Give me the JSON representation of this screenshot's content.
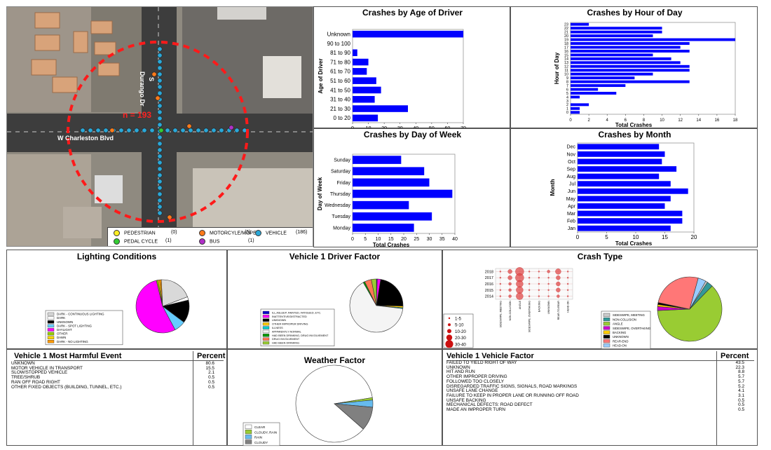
{
  "map": {
    "n_label": "n = 193",
    "street_main": "W Charleston Blvd",
    "street_cross": "Durango Dr",
    "street_s": "S",
    "legend": [
      {
        "label": "PEDESTRIAN",
        "count": "(0)",
        "color": "#ffee22"
      },
      {
        "label": "MOTORCYLE/MOPED",
        "count": "(5)",
        "color": "#ff7a1a"
      },
      {
        "label": "VEHICLE",
        "count": "(186)",
        "color": "#2aa8d8"
      },
      {
        "label": "PEDAL CYCLE",
        "count": "(1)",
        "color": "#33cc33"
      },
      {
        "label": "BUS",
        "count": "(1)",
        "color": "#b030c8"
      }
    ]
  },
  "chart_data": [
    {
      "id": "age",
      "type": "bar",
      "orientation": "horizontal",
      "title": "Crashes by Age of Driver",
      "xlabel": "Total Crashes",
      "ylabel": "Age of Driver",
      "categories": [
        "Unknown",
        "90 to 100",
        "81 to 90",
        "71 to 80",
        "61 to 70",
        "51 to 60",
        "41 to 50",
        "31 to 40",
        "21 to 30",
        "0 to 20"
      ],
      "values": [
        70,
        0,
        3,
        10,
        9,
        15,
        18,
        14,
        35,
        16
      ],
      "xlim": [
        0,
        70
      ],
      "xticks": [
        0,
        10,
        20,
        30,
        40,
        50,
        60,
        70
      ],
      "color": "#0000ff"
    },
    {
      "id": "hour",
      "type": "bar",
      "orientation": "horizontal",
      "title": "Crashes by Hour of Day",
      "xlabel": "Total Crashes",
      "ylabel": "Hour of Day",
      "categories": [
        "23",
        "22",
        "21",
        "20",
        "19",
        "18",
        "17",
        "16",
        "15",
        "14",
        "13",
        "12",
        "11",
        "10",
        "9",
        "8",
        "7",
        "6",
        "5",
        "4",
        "3",
        "2",
        "1",
        "0"
      ],
      "values": [
        2,
        10,
        10,
        9,
        18,
        13,
        12,
        13,
        9,
        11,
        12,
        13,
        13,
        9,
        7,
        13,
        6,
        3,
        5,
        1,
        0,
        2,
        1,
        1
      ],
      "xlim": [
        0,
        18
      ],
      "xticks": [
        0,
        2,
        4,
        6,
        8,
        10,
        12,
        14,
        16,
        18
      ],
      "color": "#0000ff"
    },
    {
      "id": "dow",
      "type": "bar",
      "orientation": "horizontal",
      "title": "Crashes by Day of Week",
      "xlabel": "Total Crashes",
      "ylabel": "Day of Week",
      "categories": [
        "Sunday",
        "Saturday",
        "Friday",
        "Thursday",
        "Wednesday",
        "Tuesday",
        "Monday"
      ],
      "values": [
        19,
        28,
        30,
        39,
        22,
        31,
        24
      ],
      "xlim": [
        0,
        40
      ],
      "xticks": [
        0,
        5,
        10,
        15,
        20,
        25,
        30,
        35,
        40
      ],
      "color": "#0000ff"
    },
    {
      "id": "month",
      "type": "bar",
      "orientation": "horizontal",
      "title": "Crashes by Month",
      "xlabel": "Total Crashes",
      "ylabel": "Month",
      "categories": [
        "Dec",
        "Nov",
        "Oct",
        "Sep",
        "Aug",
        "Jul",
        "Jun",
        "May",
        "Apr",
        "Mar",
        "Feb",
        "Jan"
      ],
      "values": [
        14,
        15,
        14.5,
        17,
        14,
        16,
        19,
        16,
        15,
        18,
        18,
        16
      ],
      "xlim": [
        0,
        20
      ],
      "xticks": [
        0,
        5,
        10,
        15,
        20
      ],
      "color": "#0000ff"
    },
    {
      "id": "lighting",
      "type": "pie",
      "title": "Lighting Conditions",
      "slices": [
        {
          "label": "DARK - CONTINUOUS LIGHTING",
          "value": 20,
          "color": "#d9d9d9"
        },
        {
          "label": "DARK",
          "value": 2,
          "color": "#ffffff"
        },
        {
          "label": "UNKNOWN",
          "value": 14,
          "color": "#000000"
        },
        {
          "label": "DARK - SPOT LIGHTING",
          "value": 7,
          "color": "#66ccff"
        },
        {
          "label": "DAYLIGHT",
          "value": 54,
          "color": "#ff00ff"
        },
        {
          "label": "OTHER",
          "value": 1,
          "color": "#99cc00"
        },
        {
          "label": "DAWN",
          "value": 1,
          "color": "#ffd700"
        },
        {
          "label": "DARK - NO LIGHTING",
          "value": 1,
          "color": "#ff9900"
        }
      ]
    },
    {
      "id": "driver",
      "type": "pie",
      "title": "Vehicle 1 Driver Factor",
      "slices": [
        {
          "label": "ILL,ASLEEP, FAINTED, FATIGUED, ETC.",
          "value": 0.5,
          "color": "#0000cc"
        },
        {
          "label": "INATTENTIVE/DISTRACTED",
          "value": 2,
          "color": "#ff00ff"
        },
        {
          "label": "UNKNOWN",
          "value": 22,
          "color": "#000000"
        },
        {
          "label": "OTHER IMPROPER DRIVING",
          "value": 1,
          "color": "#ffcc00"
        },
        {
          "label": "ILLNESS",
          "value": 0.5,
          "color": "#00cccc"
        },
        {
          "label": "APPARENTLY NORMAL",
          "value": 63,
          "color": "#f4f4f4"
        },
        {
          "label": "HAD BEEN DRINKING, DRUG INVOLVEMENT",
          "value": 1,
          "color": "#009900"
        },
        {
          "label": "DRUG INVOLVEMENT",
          "value": 4,
          "color": "#ff7755"
        },
        {
          "label": "HAD BEEN DRINKING",
          "value": 3,
          "color": "#99cc33"
        }
      ]
    },
    {
      "id": "crashtype",
      "type": "pie",
      "title": "Crash Type",
      "slices": [
        {
          "label": "SIDESWIPE, MEETING",
          "value": 1,
          "color": "#cccccc"
        },
        {
          "label": "NON-COLLISION",
          "value": 3,
          "color": "#339999"
        },
        {
          "label": "ANGLE",
          "value": 62,
          "color": "#99cc33"
        },
        {
          "label": "SIDESWIPE, OVERTAKING",
          "value": 2,
          "color": "#cc00cc"
        },
        {
          "label": "BACKING",
          "value": 1,
          "color": "#ffcc00"
        },
        {
          "label": "UNKNOWN",
          "value": 1,
          "color": "#000000"
        },
        {
          "label": "REAR-END",
          "value": 26,
          "color": "#ff7777"
        },
        {
          "label": "HEAD-ON",
          "value": 4,
          "color": "#99ccff"
        }
      ]
    },
    {
      "id": "weather",
      "type": "pie",
      "title": "Weather Factor",
      "slices": [
        {
          "label": "CLEAR",
          "value": 86,
          "color": "#ffffff"
        },
        {
          "label": "CLOUDY, RAIN",
          "value": 1,
          "color": "#99cc33"
        },
        {
          "label": "RAIN",
          "value": 3,
          "color": "#66bbee"
        },
        {
          "label": "CLOUDY",
          "value": 10,
          "color": "#808080"
        }
      ]
    },
    {
      "id": "crashbubble",
      "type": "scatter",
      "years": [
        "2018",
        "2017",
        "2016",
        "2015",
        "2014"
      ],
      "categories": [
        "SIDESWIPE, MEETING",
        "NON-COLLISION",
        "ANGLE",
        "SIDESWIPE, OVERTAKING",
        "BACKING",
        "UNKNOWN",
        "REAR-TO-REAR",
        "HEAD-ON"
      ],
      "size_legend": [
        "1-5",
        "5-10",
        "10-20",
        "20-30",
        "30-40"
      ]
    }
  ],
  "harmful": {
    "title": "Vehicle 1 Most Harmful Event",
    "percent_header": "Percent",
    "rows": [
      {
        "label": "UNKNOWN",
        "value": "80.6"
      },
      {
        "label": "MOTOR VEHICLE IN TRANSPORT",
        "value": "15.5"
      },
      {
        "label": "SLOW/STOPPED VEHICLE",
        "value": "2.1"
      },
      {
        "label": "TREE/SHRUB",
        "value": "0.5"
      },
      {
        "label": "RAN OFF ROAD RIGHT",
        "value": "0.5"
      },
      {
        "label": "OTHER FIXED OBJECTS (BUILDING, TUNNEL, ETC.)",
        "value": "0.5"
      }
    ]
  },
  "vfactor": {
    "title": "Vehicle 1 Vehicle Factor",
    "percent_header": "Percent",
    "rows": [
      {
        "label": "FAILED TO YIELD RIGHT OF WAY",
        "value": "43.5"
      },
      {
        "label": "UNKNOWN",
        "value": "22.3"
      },
      {
        "label": "HIT AND RUN",
        "value": "8.8"
      },
      {
        "label": "OTHER IMPROPER DRIVING",
        "value": "5.7"
      },
      {
        "label": "FOLLOWED TOO CLOSELY",
        "value": "5.7"
      },
      {
        "label": "DISREGARDED TRAFFIC SIGNS, SIGNALS, ROAD MARKINGS",
        "value": "5.2"
      },
      {
        "label": "UNSAFE LANE CHANGE",
        "value": "4.1"
      },
      {
        "label": "FAILURE TO KEEP IN PROPER LANE OR RUNNING OFF ROAD",
        "value": "3.1"
      },
      {
        "label": "UNSAFE BACKING",
        "value": "0.5"
      },
      {
        "label": "MECHANICAL DEFECTS: ROAD DEFECT",
        "value": "0.5"
      },
      {
        "label": "MADE AN IMPROPER TURN",
        "value": "0.5"
      }
    ]
  }
}
